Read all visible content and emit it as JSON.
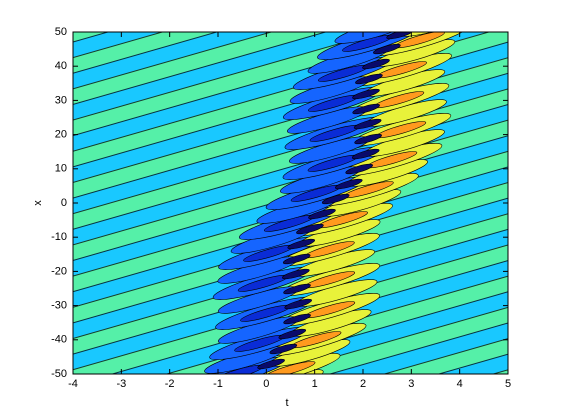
{
  "chart_data": {
    "type": "contour",
    "x_label": "t",
    "y_label": "x",
    "xlim": [
      -4,
      5
    ],
    "ylim": [
      -50,
      50
    ],
    "xticks": [
      -4,
      -3,
      -2,
      -1,
      0,
      1,
      2,
      3,
      4,
      5
    ],
    "yticks": [
      -50,
      -40,
      -30,
      -20,
      -10,
      0,
      10,
      20,
      30,
      40,
      50
    ]
  }
}
